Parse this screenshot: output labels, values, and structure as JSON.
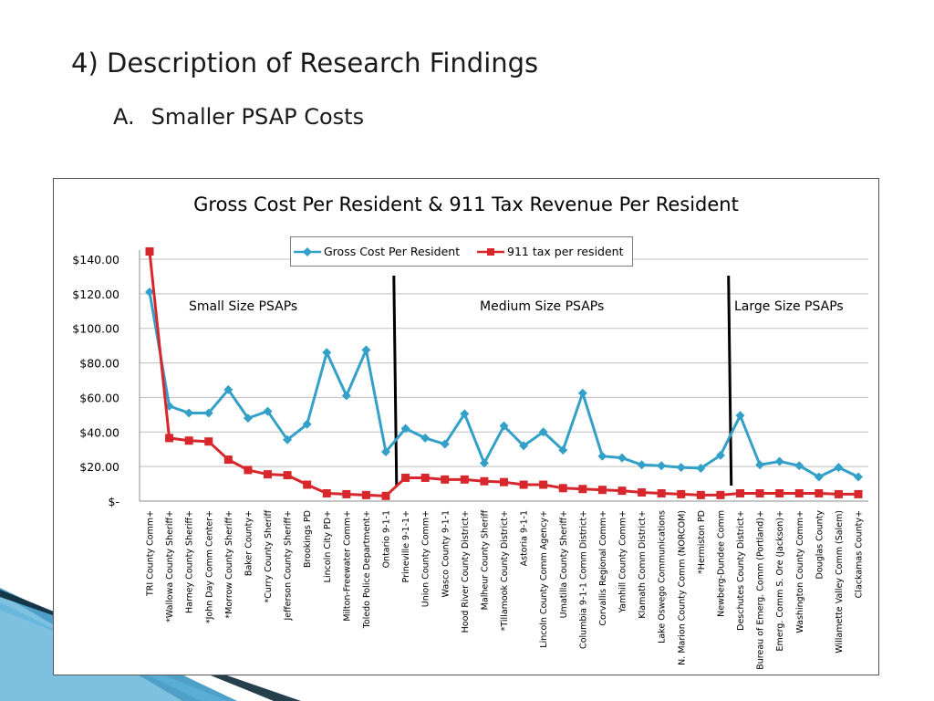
{
  "slide": {
    "title": "4) Description of Research Findings",
    "subheading_number": "A.",
    "subheading_text": "Smaller PSAP Costs"
  },
  "colors": {
    "gross_cost": "#33a0c8",
    "tax": "#d7262c",
    "grid": "#bfbfbf",
    "divider": "#000000",
    "decor_blue": "#2f8fbf",
    "decor_light": "#bfe3f2"
  },
  "chart_data": {
    "type": "line",
    "title": "Gross Cost Per Resident & 911 Tax Revenue Per Resident",
    "xlabel": "",
    "ylabel": "",
    "ylim": [
      0,
      140
    ],
    "yticks": [
      {
        "value": 0,
        "label": "$-"
      },
      {
        "value": 20,
        "label": "$20.00"
      },
      {
        "value": 40,
        "label": "$40.00"
      },
      {
        "value": 60,
        "label": "$60.00"
      },
      {
        "value": 80,
        "label": "$80.00"
      },
      {
        "value": 100,
        "label": "$100.00"
      },
      {
        "value": 120,
        "label": "$120.00"
      },
      {
        "value": 140,
        "label": "$140.00"
      }
    ],
    "grid": true,
    "legend": "top-center",
    "categories": [
      "TRI County Comm+",
      "*Wallowa County Sheriff+",
      "Harney County Sheriff+",
      "*John Day Comm Center+",
      "*Morrow County Sheriff+",
      "Baker County+",
      "*Curry County Sheriff",
      "Jefferson County Sheriff+",
      "Brookings PD",
      "Lincoln City PD+",
      "Milton-Freewater Comm+",
      "Toledo Police Department+",
      "Ontario 9-1-1",
      "Prineville 9-1-1+",
      "Union County Comm+",
      "Wasco County 9-1-1",
      "Hood River County District+",
      "Malheur County Sheriff",
      "*Tillamook County District+",
      "Astoria 9-1-1",
      "Lincoln County Comm Agency+",
      "Umatilla County Sheriff+",
      "Columbia 9-1-1 Comm District+",
      "Corvallis Regional Comm+",
      "Yamhill County Comm+",
      "Klamath Comm District+",
      "Lake Oswego Communications",
      "N. Marion County Comm (NORCOM)",
      "*Hermiston PD",
      "Newberg-Dundee Comm",
      "Deschutes County District+",
      "Bureau of Emerg. Comm (Portland)+",
      "Emerg. Comm S. Ore (Jackson)+",
      "Washington County Comm+",
      "Douglas County",
      "Willamette Valley Comm (Salem)",
      "Clackamas County+"
    ],
    "series": [
      {
        "name": "Gross Cost Per Resident",
        "marker": "diamond",
        "values": [
          121,
          55,
          51,
          51,
          64.5,
          48,
          52,
          35.5,
          44.5,
          86,
          61,
          87.5,
          28.5,
          42,
          36.5,
          33,
          50.5,
          22,
          43.5,
          32,
          40,
          29.5,
          62.5,
          26,
          25,
          21,
          20.5,
          19.5,
          19,
          26.5,
          49.5,
          21,
          23,
          20.5,
          14,
          19.5,
          14
        ]
      },
      {
        "name": "911 tax per resident",
        "marker": "square",
        "values": [
          144.5,
          36.5,
          35,
          34.5,
          24,
          18,
          15.5,
          15,
          9.5,
          4.5,
          4,
          3.5,
          3,
          13.5,
          13.5,
          12.5,
          12.5,
          11.5,
          11,
          9.5,
          9.5,
          7.5,
          7,
          6.5,
          6,
          5,
          4.5,
          4,
          3.5,
          3.5,
          4.5,
          4.5,
          4.5,
          4.5,
          4.5,
          4,
          4
        ]
      }
    ],
    "annotations": [
      {
        "text": "Small Size PSAPs",
        "after_index": null
      },
      {
        "text": "Medium Size PSAPs",
        "after_index": 12
      },
      {
        "text": "Large Size PSAPs",
        "after_index": 29
      }
    ]
  }
}
